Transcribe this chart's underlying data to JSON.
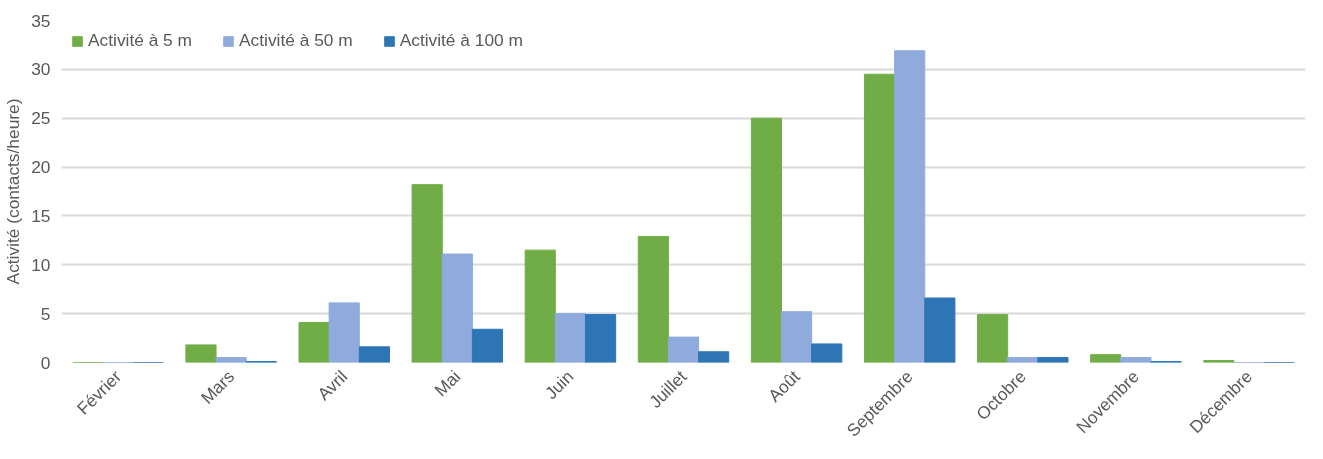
{
  "chart_data": {
    "type": "bar",
    "ylabel": "Activité (contacts/heure)",
    "categories": [
      "Février",
      "Mars",
      "Avril",
      "Mai",
      "Juin",
      "Juillet",
      "Août",
      "Septembre",
      "Octobre",
      "Novembre",
      "Décembre"
    ],
    "series": [
      {
        "name": "Activité à 5 m",
        "color": "#70ad47",
        "values": [
          0,
          1.8,
          4.1,
          18.2,
          11.5,
          12.9,
          25,
          29.5,
          4.9,
          0.8,
          0.2
        ]
      },
      {
        "name": "Activité à 50 m",
        "color": "#8faadc",
        "values": [
          0,
          0.5,
          6.1,
          11.1,
          5,
          2.6,
          5.2,
          31.9,
          0.5,
          0.5,
          0
        ]
      },
      {
        "name": "Activité à 100 m",
        "color": "#2e75b6",
        "values": [
          0,
          0.1,
          1.6,
          3.4,
          4.9,
          1.1,
          1.9,
          6.6,
          0.5,
          0.1,
          0
        ]
      }
    ],
    "ylim": [
      0,
      35
    ],
    "yticks": [
      0,
      5,
      10,
      15,
      20,
      25,
      30,
      35
    ],
    "grid": "y",
    "legend": "top left"
  }
}
